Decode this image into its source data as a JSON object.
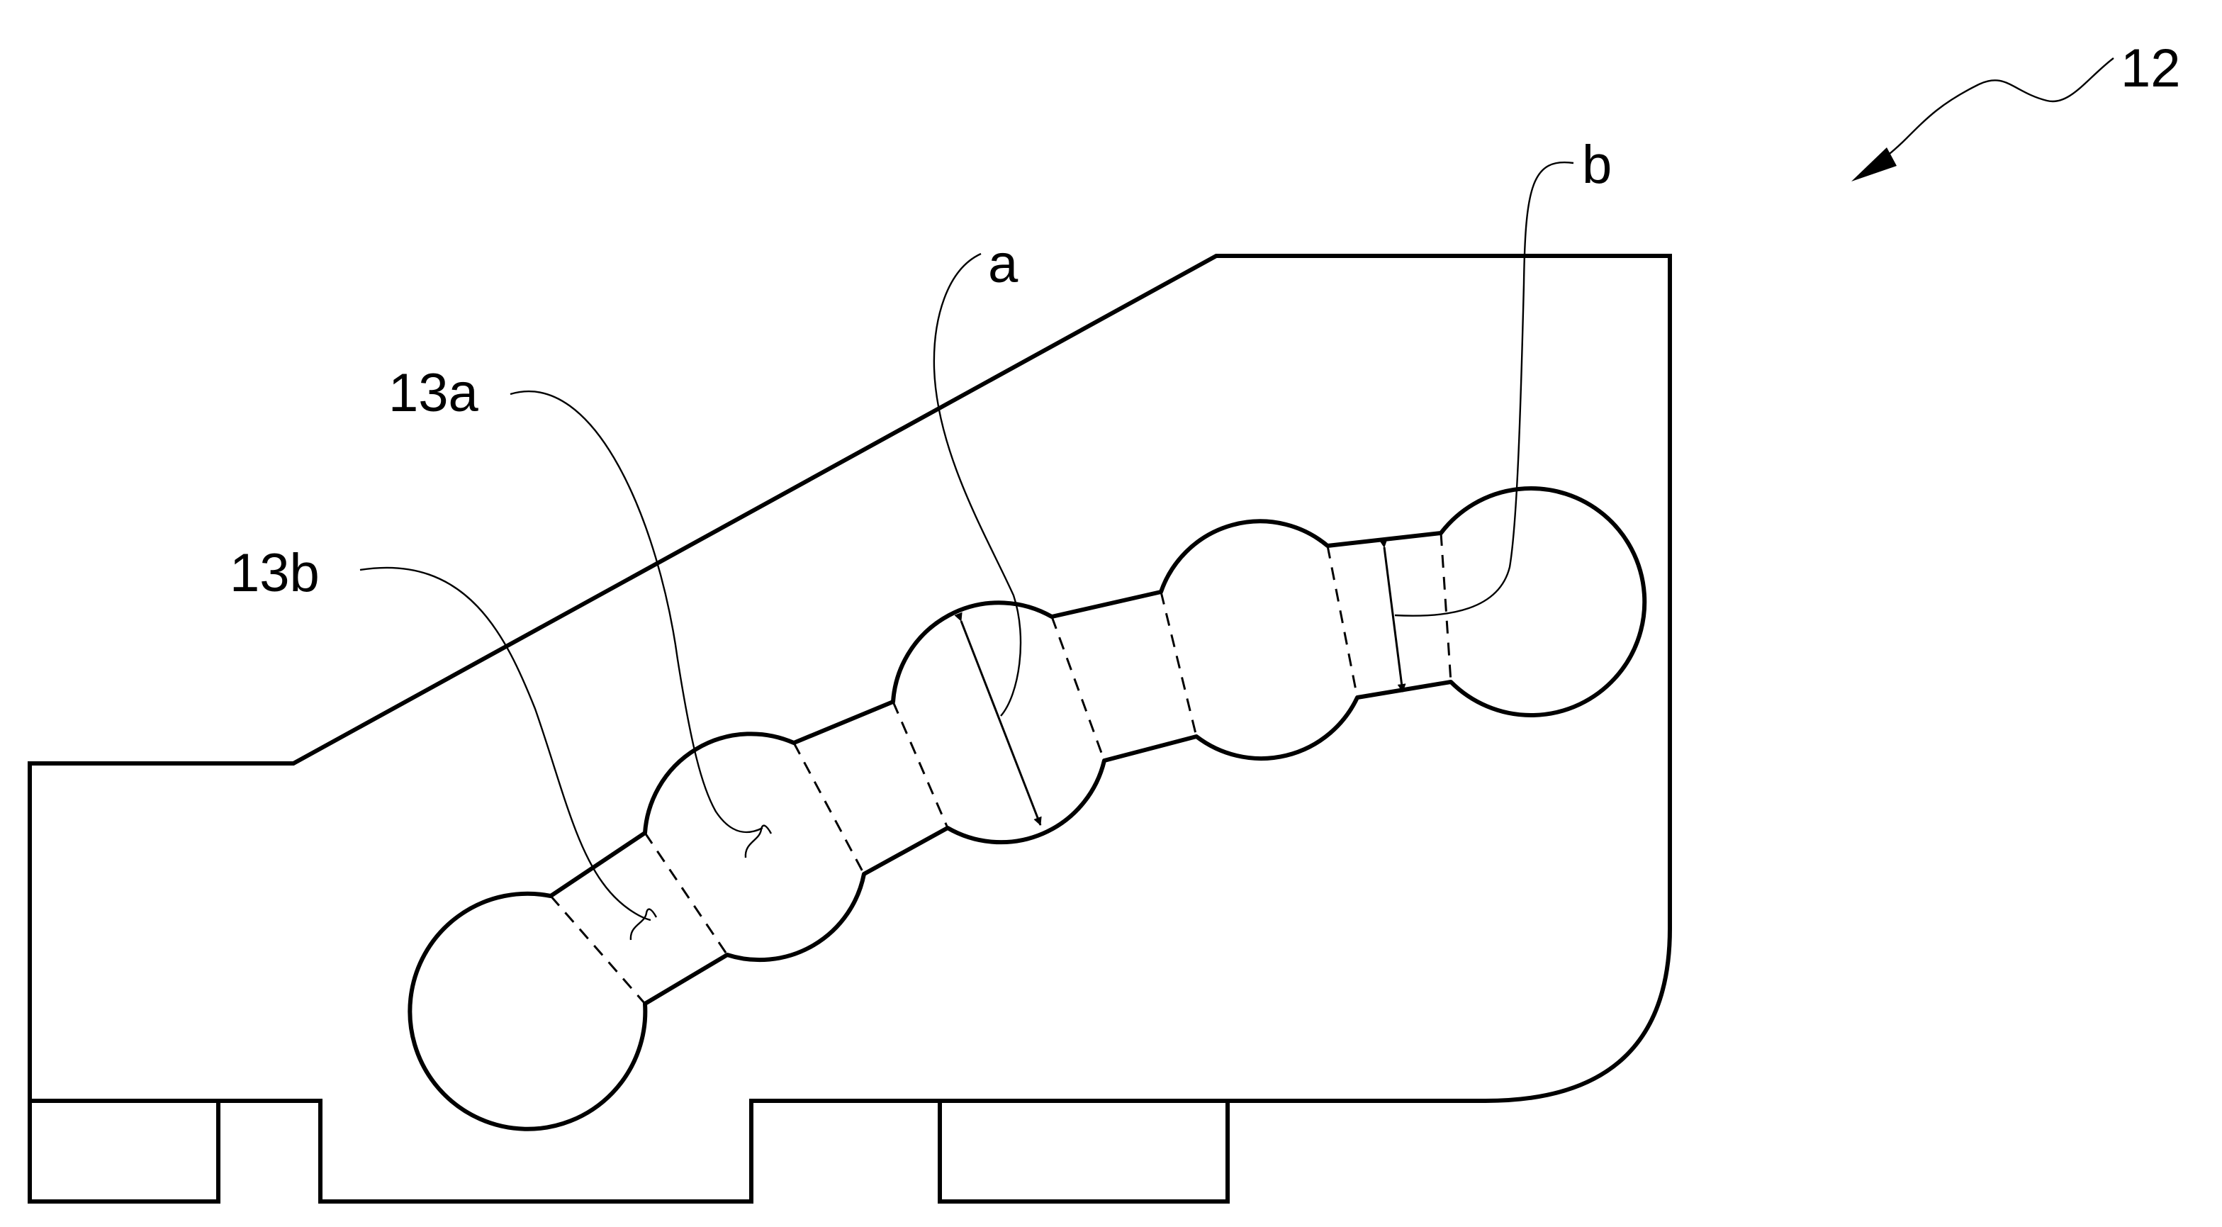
{
  "figure": {
    "labels": {
      "assembly": "12",
      "dimension_a": "a",
      "dimension_b": "b",
      "part_13a": "13a",
      "part_13b": "13b"
    }
  }
}
